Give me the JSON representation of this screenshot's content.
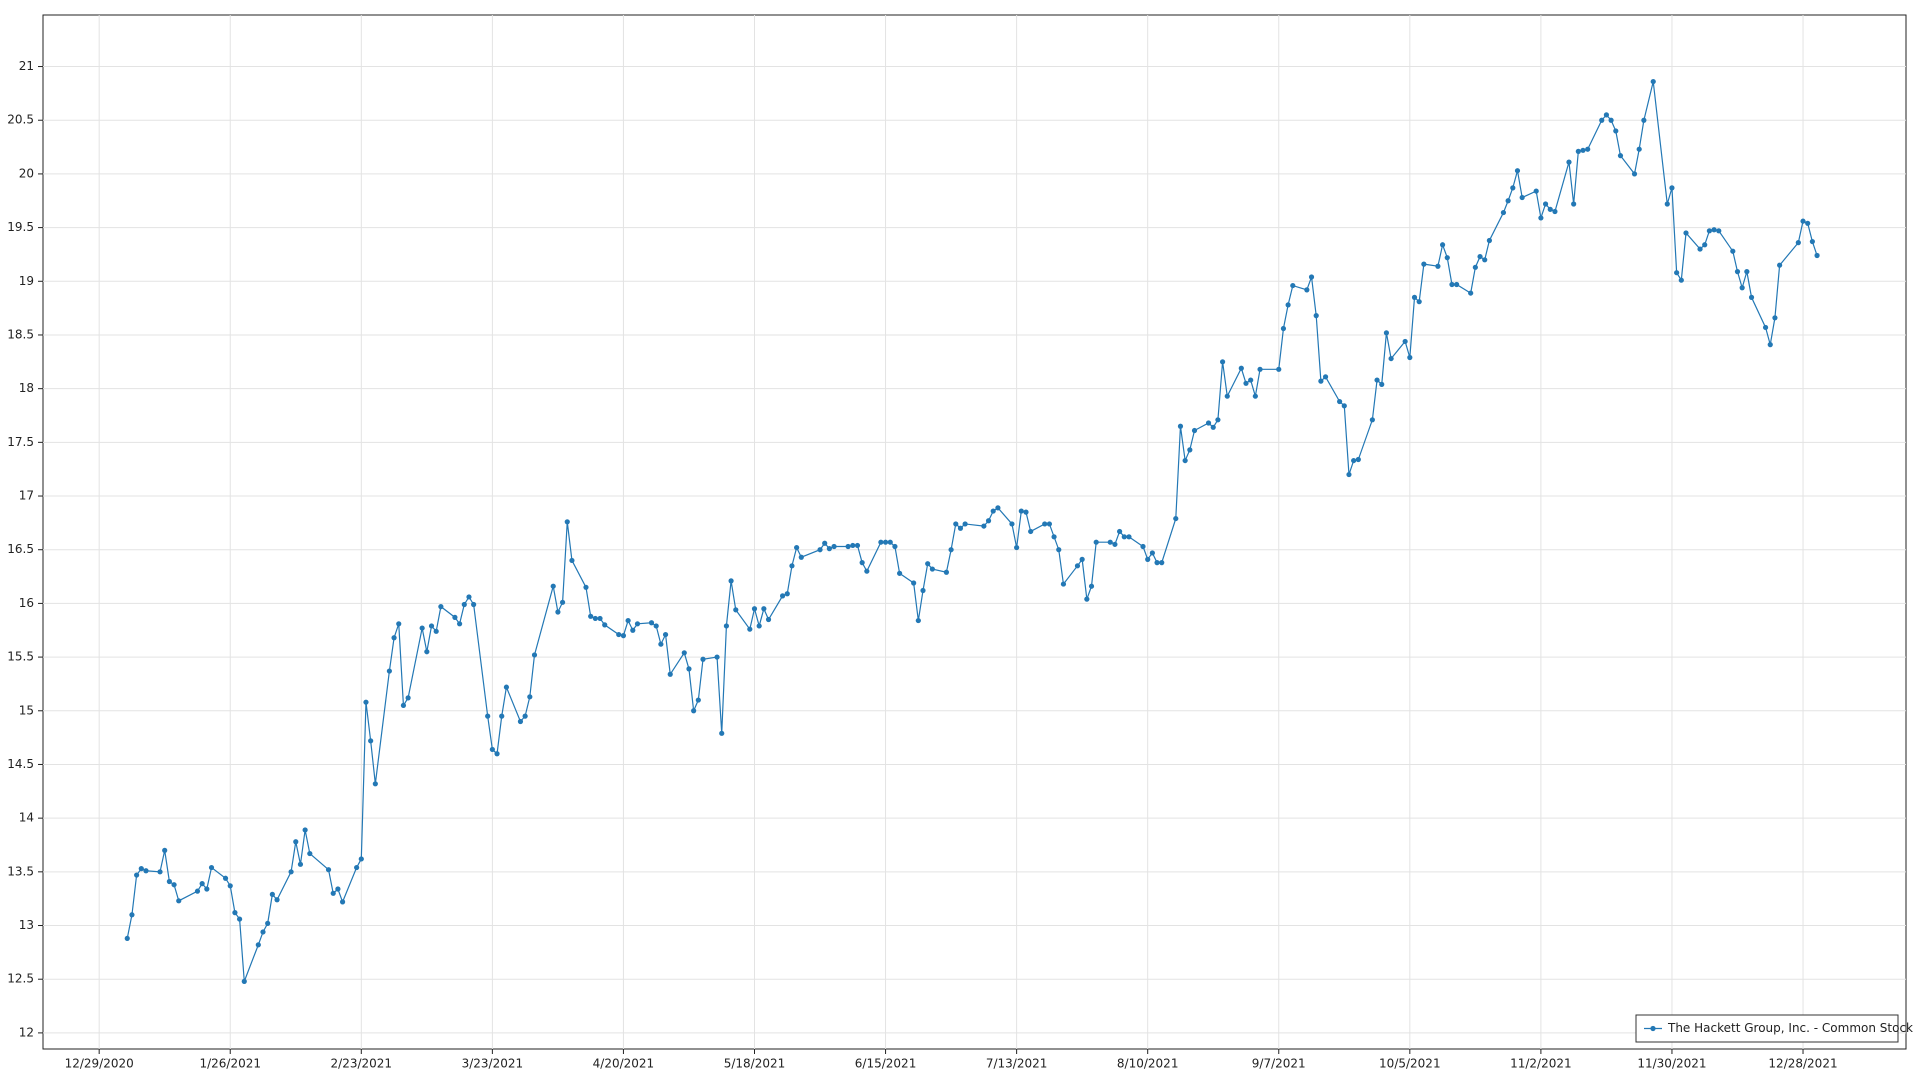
{
  "chart_data": {
    "type": "line",
    "x": [
      "1/4/2021",
      "1/5/2021",
      "1/6/2021",
      "1/7/2021",
      "1/8/2021",
      "1/11/2021",
      "1/12/2021",
      "1/13/2021",
      "1/14/2021",
      "1/15/2021",
      "1/19/2021",
      "1/20/2021",
      "1/21/2021",
      "1/22/2021",
      "1/25/2021",
      "1/26/2021",
      "1/27/2021",
      "1/28/2021",
      "1/29/2021",
      "2/1/2021",
      "2/2/2021",
      "2/3/2021",
      "2/4/2021",
      "2/5/2021",
      "2/8/2021",
      "2/9/2021",
      "2/10/2021",
      "2/11/2021",
      "2/12/2021",
      "2/16/2021",
      "2/17/2021",
      "2/18/2021",
      "2/19/2021",
      "2/22/2021",
      "2/23/2021",
      "2/24/2021",
      "2/25/2021",
      "2/26/2021",
      "3/1/2021",
      "3/2/2021",
      "3/3/2021",
      "3/4/2021",
      "3/5/2021",
      "3/8/2021",
      "3/9/2021",
      "3/10/2021",
      "3/11/2021",
      "3/12/2021",
      "3/15/2021",
      "3/16/2021",
      "3/17/2021",
      "3/18/2021",
      "3/19/2021",
      "3/22/2021",
      "3/23/2021",
      "3/24/2021",
      "3/25/2021",
      "3/26/2021",
      "3/29/2021",
      "3/30/2021",
      "3/31/2021",
      "4/1/2021",
      "4/5/2021",
      "4/6/2021",
      "4/7/2021",
      "4/8/2021",
      "4/9/2021",
      "4/12/2021",
      "4/13/2021",
      "4/14/2021",
      "4/15/2021",
      "4/16/2021",
      "4/19/2021",
      "4/20/2021",
      "4/21/2021",
      "4/22/2021",
      "4/23/2021",
      "4/26/2021",
      "4/27/2021",
      "4/28/2021",
      "4/29/2021",
      "4/30/2021",
      "5/3/2021",
      "5/4/2021",
      "5/5/2021",
      "5/6/2021",
      "5/7/2021",
      "5/10/2021",
      "5/11/2021",
      "5/12/2021",
      "5/13/2021",
      "5/14/2021",
      "5/17/2021",
      "5/18/2021",
      "5/19/2021",
      "5/20/2021",
      "5/21/2021",
      "5/24/2021",
      "5/25/2021",
      "5/26/2021",
      "5/27/2021",
      "5/28/2021",
      "6/1/2021",
      "6/2/2021",
      "6/3/2021",
      "6/4/2021",
      "6/7/2021",
      "6/8/2021",
      "6/9/2021",
      "6/10/2021",
      "6/11/2021",
      "6/14/2021",
      "6/15/2021",
      "6/16/2021",
      "6/17/2021",
      "6/18/2021",
      "6/21/2021",
      "6/22/2021",
      "6/23/2021",
      "6/24/2021",
      "6/25/2021",
      "6/28/2021",
      "6/29/2021",
      "6/30/2021",
      "7/1/2021",
      "7/2/2021",
      "7/6/2021",
      "7/7/2021",
      "7/8/2021",
      "7/9/2021",
      "7/12/2021",
      "7/13/2021",
      "7/14/2021",
      "7/15/2021",
      "7/16/2021",
      "7/19/2021",
      "7/20/2021",
      "7/21/2021",
      "7/22/2021",
      "7/23/2021",
      "7/26/2021",
      "7/27/2021",
      "7/28/2021",
      "7/29/2021",
      "7/30/2021",
      "8/2/2021",
      "8/3/2021",
      "8/4/2021",
      "8/5/2021",
      "8/6/2021",
      "8/9/2021",
      "8/10/2021",
      "8/11/2021",
      "8/12/2021",
      "8/13/2021",
      "8/16/2021",
      "8/17/2021",
      "8/18/2021",
      "8/19/2021",
      "8/20/2021",
      "8/23/2021",
      "8/24/2021",
      "8/25/2021",
      "8/26/2021",
      "8/27/2021",
      "8/30/2021",
      "8/31/2021",
      "9/1/2021",
      "9/2/2021",
      "9/3/2021",
      "9/7/2021",
      "9/8/2021",
      "9/9/2021",
      "9/10/2021",
      "9/13/2021",
      "9/14/2021",
      "9/15/2021",
      "9/16/2021",
      "9/17/2021",
      "9/20/2021",
      "9/21/2021",
      "9/22/2021",
      "9/23/2021",
      "9/24/2021",
      "9/27/2021",
      "9/28/2021",
      "9/29/2021",
      "9/30/2021",
      "10/1/2021",
      "10/4/2021",
      "10/5/2021",
      "10/6/2021",
      "10/7/2021",
      "10/8/2021",
      "10/11/2021",
      "10/12/2021",
      "10/13/2021",
      "10/14/2021",
      "10/15/2021",
      "10/18/2021",
      "10/19/2021",
      "10/20/2021",
      "10/21/2021",
      "10/22/2021",
      "10/25/2021",
      "10/26/2021",
      "10/27/2021",
      "10/28/2021",
      "10/29/2021",
      "11/1/2021",
      "11/2/2021",
      "11/3/2021",
      "11/4/2021",
      "11/5/2021",
      "11/8/2021",
      "11/9/2021",
      "11/10/2021",
      "11/11/2021",
      "11/12/2021",
      "11/15/2021",
      "11/16/2021",
      "11/17/2021",
      "11/18/2021",
      "11/19/2021",
      "11/22/2021",
      "11/23/2021",
      "11/24/2021",
      "11/26/2021",
      "11/29/2021",
      "11/30/2021",
      "12/1/2021",
      "12/2/2021",
      "12/3/2021",
      "12/6/2021",
      "12/7/2021",
      "12/8/2021",
      "12/9/2021",
      "12/10/2021",
      "12/13/2021",
      "12/14/2021",
      "12/15/2021",
      "12/16/2021",
      "12/17/2021",
      "12/20/2021",
      "12/21/2021",
      "12/22/2021",
      "12/23/2021",
      "12/27/2021",
      "12/28/2021",
      "12/29/2021",
      "12/30/2021",
      "12/31/2021"
    ],
    "series": [
      {
        "name": "The Hackett Group, Inc. - Common Stock",
        "color": "#2378b5",
        "values": [
          12.88,
          13.1,
          13.47,
          13.53,
          13.51,
          13.5,
          13.7,
          13.41,
          13.38,
          13.23,
          13.32,
          13.39,
          13.34,
          13.54,
          13.44,
          13.37,
          13.12,
          13.06,
          12.48,
          12.82,
          12.94,
          13.02,
          13.29,
          13.24,
          13.5,
          13.78,
          13.57,
          13.89,
          13.67,
          13.52,
          13.3,
          13.34,
          13.22,
          13.54,
          13.62,
          15.08,
          14.72,
          14.32,
          15.37,
          15.68,
          15.81,
          15.05,
          15.12,
          15.77,
          15.55,
          15.79,
          15.74,
          15.97,
          15.87,
          15.81,
          15.99,
          16.06,
          15.99,
          14.95,
          14.64,
          14.6,
          14.95,
          15.22,
          14.9,
          14.95,
          15.13,
          15.52,
          16.16,
          15.92,
          16.01,
          16.76,
          16.4,
          16.15,
          15.88,
          15.86,
          15.86,
          15.8,
          15.71,
          15.7,
          15.84,
          15.75,
          15.81,
          15.82,
          15.79,
          15.62,
          15.71,
          15.34,
          15.54,
          15.39,
          15.0,
          15.1,
          15.48,
          15.5,
          14.79,
          15.79,
          16.21,
          15.94,
          15.76,
          15.95,
          15.79,
          15.95,
          15.85,
          16.07,
          16.09,
          16.35,
          16.52,
          16.43,
          16.5,
          16.56,
          16.51,
          16.53,
          16.53,
          16.54,
          16.54,
          16.38,
          16.3,
          16.57,
          16.57,
          16.57,
          16.53,
          16.28,
          16.19,
          15.84,
          16.12,
          16.37,
          16.32,
          16.29,
          16.5,
          16.74,
          16.7,
          16.74,
          16.72,
          16.77,
          16.86,
          16.89,
          16.74,
          16.52,
          16.86,
          16.85,
          16.67,
          16.74,
          16.74,
          16.62,
          16.5,
          16.18,
          16.35,
          16.41,
          16.04,
          16.16,
          16.57,
          16.57,
          16.55,
          16.67,
          16.62,
          16.62,
          16.53,
          16.41,
          16.47,
          16.38,
          16.38,
          16.79,
          17.65,
          17.33,
          17.43,
          17.61,
          17.68,
          17.64,
          17.71,
          18.25,
          17.93,
          18.19,
          18.05,
          18.08,
          17.93,
          18.18,
          18.18,
          18.56,
          18.78,
          18.96,
          18.92,
          19.04,
          18.68,
          18.07,
          18.11,
          17.88,
          17.84,
          17.2,
          17.33,
          17.34,
          17.71,
          18.08,
          18.04,
          18.52,
          18.28,
          18.44,
          18.29,
          18.85,
          18.81,
          19.16,
          19.14,
          19.34,
          19.22,
          18.97,
          18.97,
          18.89,
          19.13,
          19.23,
          19.2,
          19.38,
          19.64,
          19.75,
          19.87,
          20.03,
          19.78,
          19.84,
          19.59,
          19.72,
          19.67,
          19.65,
          20.11,
          19.72,
          20.21,
          20.22,
          20.23,
          20.5,
          20.55,
          20.5,
          20.4,
          20.17,
          20.0,
          20.23,
          20.5,
          20.86,
          19.72,
          19.87,
          19.08,
          19.01,
          19.45,
          19.3,
          19.34,
          19.47,
          19.48,
          19.47,
          19.28,
          19.09,
          18.94,
          19.09,
          18.85,
          18.57,
          18.41,
          18.66,
          19.15,
          19.36,
          19.56,
          19.54,
          19.37,
          19.24
        ]
      }
    ],
    "xlim": [
      "12/17/2020",
      "1/19/2022"
    ],
    "xticks": [
      "12/29/2020",
      "1/26/2021",
      "2/23/2021",
      "3/23/2021",
      "4/20/2021",
      "5/18/2021",
      "6/15/2021",
      "7/13/2021",
      "8/10/2021",
      "9/7/2021",
      "10/5/2021",
      "11/2/2021",
      "11/30/2021",
      "12/28/2021"
    ],
    "ylim": [
      11.85,
      21.48
    ],
    "yticks": [
      12,
      12.5,
      13,
      13.5,
      14,
      14.5,
      15,
      15.5,
      16,
      16.5,
      17,
      17.5,
      18,
      18.5,
      19,
      19.5,
      20,
      20.5,
      21
    ],
    "grid": true,
    "legend": "lower right"
  }
}
